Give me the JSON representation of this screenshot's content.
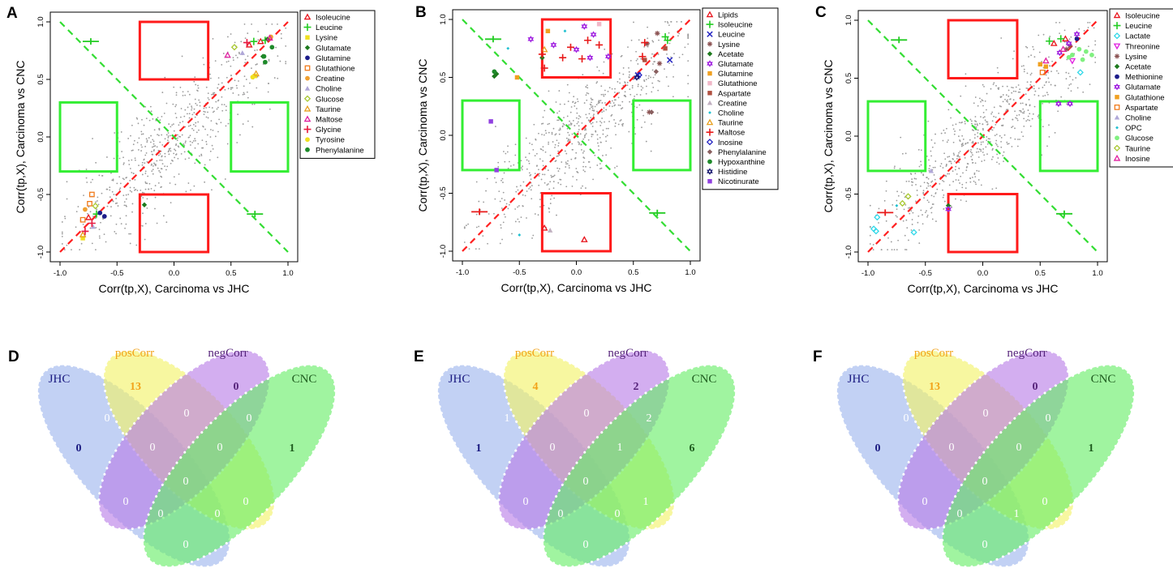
{
  "figure": {
    "colors": {
      "background_points": "#9a9a9a",
      "diag_positive": "#ff2020",
      "diag_negative": "#33dd33",
      "box_red": "#ff1a1a",
      "box_green": "#33ee33",
      "venn_blue": "#9db5ee",
      "venn_yellow": "#f2f266",
      "venn_purple": "#b87de6",
      "venn_green": "#66ee66",
      "jhc_label": "#1a1a80",
      "pos_label": "#f2a31a",
      "neg_label": "#55227a",
      "cnc_label": "#1f5c1f"
    }
  },
  "chart_data": [
    {
      "type": "scatter",
      "panel": "A",
      "xlabel": "Corr(tp,X), Carcinoma vs JHC",
      "ylabel": "Corr(tp,X), Carcinoma vs CNC",
      "xlim": [
        -1.0,
        1.0
      ],
      "ylim": [
        -1.0,
        1.0
      ],
      "xticks": [
        "-1.0",
        "-0.5",
        "0.0",
        "0.5",
        "1.0"
      ],
      "yticks": [
        "-1.0",
        "-0.5",
        "0.0",
        "0.5",
        "1.0"
      ],
      "background_seed": 11,
      "legend": [
        {
          "name": "Isoleucine",
          "color": "#e8141c",
          "marker": "triangle-open"
        },
        {
          "name": "Leucine",
          "color": "#22cc22",
          "marker": "plus"
        },
        {
          "name": "Lysine",
          "color": "#f0e020",
          "marker": "square"
        },
        {
          "name": "Glutamate",
          "color": "#1e7a1e",
          "marker": "diamond"
        },
        {
          "name": "Glutamine",
          "color": "#1c1c8a",
          "marker": "circle"
        },
        {
          "name": "Glutathione",
          "color": "#f07a1a",
          "marker": "square-open"
        },
        {
          "name": "Creatine",
          "color": "#f0a030",
          "marker": "circle"
        },
        {
          "name": "Choline",
          "color": "#b0a8d8",
          "marker": "triangle"
        },
        {
          "name": "Glucose",
          "color": "#a8c830",
          "marker": "diamond-open"
        },
        {
          "name": "Taurine",
          "color": "#e8a020",
          "marker": "triangle-open"
        },
        {
          "name": "Maltose",
          "color": "#e020a0",
          "marker": "triangle-open"
        },
        {
          "name": "Glycine",
          "color": "#e81a40",
          "marker": "plus"
        },
        {
          "name": "Tyrosine",
          "color": "#f0e020",
          "marker": "circle"
        },
        {
          "name": "Phenylalanine",
          "color": "#1e8a2a",
          "marker": "circle"
        }
      ],
      "points": [
        {
          "s": 0,
          "x": 0.76,
          "y": 0.83
        },
        {
          "s": 0,
          "x": 0.66,
          "y": 0.8
        },
        {
          "s": 0,
          "x": -0.75,
          "y": -0.7
        },
        {
          "s": 1,
          "x": 0.7,
          "y": 0.83
        },
        {
          "s": 1,
          "x": 0.8,
          "y": 0.84
        },
        {
          "s": 1,
          "x": -0.68,
          "y": -0.67
        },
        {
          "s": 2,
          "x": 0.71,
          "y": 0.53
        },
        {
          "s": 2,
          "x": -0.8,
          "y": -0.88
        },
        {
          "s": 3,
          "x": 0.82,
          "y": 0.85
        },
        {
          "s": 3,
          "x": 0.78,
          "y": 0.7
        },
        {
          "s": 3,
          "x": -0.26,
          "y": -0.59
        },
        {
          "s": 4,
          "x": -0.61,
          "y": -0.69
        },
        {
          "s": 4,
          "x": -0.65,
          "y": -0.66
        },
        {
          "s": 5,
          "x": -0.8,
          "y": -0.72
        },
        {
          "s": 5,
          "x": -0.74,
          "y": -0.58
        },
        {
          "s": 5,
          "x": -0.72,
          "y": -0.5
        },
        {
          "s": 6,
          "x": 0.85,
          "y": 0.87
        },
        {
          "s": 6,
          "x": -0.78,
          "y": -0.63
        },
        {
          "s": 7,
          "x": 0.6,
          "y": 0.73
        },
        {
          "s": 7,
          "x": -0.71,
          "y": -0.78
        },
        {
          "s": 8,
          "x": 0.53,
          "y": 0.78
        },
        {
          "s": 8,
          "x": -0.69,
          "y": -0.6
        },
        {
          "s": 9,
          "x": 0.72,
          "y": 0.55
        },
        {
          "s": 9,
          "x": -0.8,
          "y": -0.85
        },
        {
          "s": 10,
          "x": 0.47,
          "y": 0.71
        },
        {
          "s": 10,
          "x": 0.84,
          "y": 0.86
        },
        {
          "s": 11,
          "x": 0.64,
          "y": 0.82
        },
        {
          "s": 11,
          "x": -0.72,
          "y": -0.75
        },
        {
          "s": 11,
          "x": -0.78,
          "y": -0.82
        },
        {
          "s": 12,
          "x": 0.69,
          "y": 0.52
        },
        {
          "s": 13,
          "x": 0.86,
          "y": 0.78
        },
        {
          "s": 13,
          "x": 0.8,
          "y": 0.65
        },
        {
          "s": 13,
          "x": 0.79,
          "y": 0.7
        }
      ],
      "markers_off_diagonal": [
        {
          "type": "plus",
          "color": "#22cc22",
          "x": -0.73,
          "y": 0.83
        },
        {
          "type": "plus",
          "color": "#22cc22",
          "x": 0.71,
          "y": -0.67
        }
      ]
    },
    {
      "type": "scatter",
      "panel": "B",
      "xlabel": "Corr(tp,X), Carcinoma vs JHC",
      "ylabel": "Corr(tp,X), Carcinoma vs CNC",
      "xlim": [
        -1.0,
        1.0
      ],
      "ylim": [
        -1.0,
        1.0
      ],
      "xticks": [
        "-1.0",
        "-0.5",
        "0.0",
        "0.5",
        "1.0"
      ],
      "yticks": [
        "-1.0",
        "-0.5",
        "0.0",
        "0.5",
        "1.0"
      ],
      "background_seed": 23,
      "legend": [
        {
          "name": "Lipids",
          "color": "#e8141c",
          "marker": "triangle-open"
        },
        {
          "name": "Isoleucine",
          "color": "#22cc22",
          "marker": "plus"
        },
        {
          "name": "Leucine",
          "color": "#2020c0",
          "marker": "cross"
        },
        {
          "name": "Lysine",
          "color": "#8a5050",
          "marker": "asterisk"
        },
        {
          "name": "Acetate",
          "color": "#1e7a1e",
          "marker": "diamond"
        },
        {
          "name": "Glutamate",
          "color": "#a020e0",
          "marker": "star-of-david"
        },
        {
          "name": "Glutamine",
          "color": "#f0a020",
          "marker": "square"
        },
        {
          "name": "Glutathione",
          "color": "#f0b8c8",
          "marker": "square"
        },
        {
          "name": "Aspartate",
          "color": "#b05040",
          "marker": "square"
        },
        {
          "name": "Creatine",
          "color": "#c0b0c0",
          "marker": "triangle"
        },
        {
          "name": "Choline",
          "color": "#20c0d0",
          "marker": "diamond-small"
        },
        {
          "name": "Taurine",
          "color": "#e8a020",
          "marker": "triangle-open"
        },
        {
          "name": "Maltose",
          "color": "#e81a1a",
          "marker": "plus"
        },
        {
          "name": "Inosine",
          "color": "#2020c0",
          "marker": "diamond-open"
        },
        {
          "name": "Phenylalanine",
          "color": "#8a6060",
          "marker": "diamond"
        },
        {
          "name": "Hypoxanthine",
          "color": "#1e8a2a",
          "marker": "circle"
        },
        {
          "name": "Histidine",
          "color": "#1a1a70",
          "marker": "star-of-david"
        },
        {
          "name": "Nicotinurate",
          "color": "#9040e0",
          "marker": "square"
        }
      ],
      "points": [
        {
          "s": 0,
          "x": 0.07,
          "y": -0.9
        },
        {
          "s": 0,
          "x": -0.28,
          "y": -0.8
        },
        {
          "s": 1,
          "x": 0.78,
          "y": 0.85
        },
        {
          "s": 1,
          "x": 0.8,
          "y": 0.82
        },
        {
          "s": 2,
          "x": 0.82,
          "y": 0.65
        },
        {
          "s": 2,
          "x": 0.54,
          "y": 0.52
        },
        {
          "s": 3,
          "x": 0.71,
          "y": 0.88
        },
        {
          "s": 3,
          "x": 0.62,
          "y": 0.79
        },
        {
          "s": 3,
          "x": 0.73,
          "y": 0.62
        },
        {
          "s": 3,
          "x": 0.64,
          "y": 0.2
        },
        {
          "s": 4,
          "x": -0.7,
          "y": 0.53
        },
        {
          "s": 4,
          "x": -0.72,
          "y": 0.51
        },
        {
          "s": 4,
          "x": -0.3,
          "y": 0.67
        },
        {
          "s": 5,
          "x": -0.4,
          "y": 0.83
        },
        {
          "s": 5,
          "x": 0.07,
          "y": 0.94
        },
        {
          "s": 5,
          "x": 0.15,
          "y": 0.87
        },
        {
          "s": 5,
          "x": 0.12,
          "y": 0.67
        },
        {
          "s": 5,
          "x": -0.2,
          "y": 0.78
        },
        {
          "s": 5,
          "x": 0.0,
          "y": 0.74
        },
        {
          "s": 5,
          "x": 0.28,
          "y": 0.68
        },
        {
          "s": 6,
          "x": -0.25,
          "y": 0.9
        },
        {
          "s": 6,
          "x": -0.52,
          "y": 0.5
        },
        {
          "s": 7,
          "x": 0.2,
          "y": 0.96
        },
        {
          "s": 8,
          "x": 0.6,
          "y": 0.65
        },
        {
          "s": 8,
          "x": 0.78,
          "y": 0.75
        },
        {
          "s": 9,
          "x": -0.23,
          "y": -0.82
        },
        {
          "s": 10,
          "x": -0.6,
          "y": 0.75
        },
        {
          "s": 10,
          "x": -0.5,
          "y": -0.86
        },
        {
          "s": 10,
          "x": -0.1,
          "y": 0.9
        },
        {
          "s": 11,
          "x": -0.28,
          "y": 0.74
        },
        {
          "s": 12,
          "x": -0.28,
          "y": 0.58
        },
        {
          "s": 12,
          "x": -0.05,
          "y": 0.76
        },
        {
          "s": 12,
          "x": 0.05,
          "y": 0.66
        },
        {
          "s": 12,
          "x": 0.1,
          "y": 0.82
        },
        {
          "s": 12,
          "x": -0.12,
          "y": 0.67
        },
        {
          "s": 12,
          "x": 0.2,
          "y": 0.78
        },
        {
          "s": 12,
          "x": -0.3,
          "y": 0.7
        },
        {
          "s": 12,
          "x": 0.58,
          "y": 0.68
        },
        {
          "s": 12,
          "x": 0.6,
          "y": 0.8
        },
        {
          "s": 13,
          "x": 0.55,
          "y": 0.52
        },
        {
          "s": 14,
          "x": 0.7,
          "y": 0.55
        },
        {
          "s": 14,
          "x": 0.66,
          "y": 0.2
        },
        {
          "s": 15,
          "x": -0.72,
          "y": 0.55
        },
        {
          "s": 16,
          "x": 0.53,
          "y": 0.5
        },
        {
          "s": 17,
          "x": -0.75,
          "y": 0.12
        },
        {
          "s": 17,
          "x": -0.7,
          "y": -0.3
        }
      ],
      "markers_off_diagonal": [
        {
          "type": "plus",
          "color": "#22cc22",
          "x": -0.73,
          "y": 0.83
        },
        {
          "type": "plus",
          "color": "#22cc22",
          "x": 0.71,
          "y": -0.67
        },
        {
          "type": "plus",
          "color": "#e81a1a",
          "x": -0.85,
          "y": -0.66
        }
      ]
    },
    {
      "type": "scatter",
      "panel": "C",
      "xlabel": "Corr(tp,X), Carcinoma vs JHC",
      "ylabel": "Corr(tp,X), Carcinoma vs CNC",
      "xlim": [
        -1.0,
        1.0
      ],
      "ylim": [
        -1.0,
        1.0
      ],
      "xticks": [
        "-1.0",
        "-0.5",
        "0.0",
        "0.5",
        "1.0"
      ],
      "yticks": [
        "-1.0",
        "-0.5",
        "0.0",
        "0.5",
        "1.0"
      ],
      "background_seed": 37,
      "legend": [
        {
          "name": "Isoleucine",
          "color": "#e8141c",
          "marker": "triangle-open"
        },
        {
          "name": "Leucine",
          "color": "#22cc22",
          "marker": "plus"
        },
        {
          "name": "Lactate",
          "color": "#30d8e8",
          "marker": "diamond-open"
        },
        {
          "name": "Threonine",
          "color": "#e020e0",
          "marker": "triangle-down-open"
        },
        {
          "name": "Lysine",
          "color": "#8a5050",
          "marker": "asterisk"
        },
        {
          "name": "Acetate",
          "color": "#1e7a1e",
          "marker": "diamond"
        },
        {
          "name": "Methionine",
          "color": "#1c1c8a",
          "marker": "circle"
        },
        {
          "name": "Glutamate",
          "color": "#a020e0",
          "marker": "star-of-david"
        },
        {
          "name": "Glutathione",
          "color": "#f0a020",
          "marker": "square"
        },
        {
          "name": "Aspartate",
          "color": "#f07a1a",
          "marker": "square-open"
        },
        {
          "name": "Choline",
          "color": "#b0a8d8",
          "marker": "triangle"
        },
        {
          "name": "OPC",
          "color": "#20c0d0",
          "marker": "diamond-small"
        },
        {
          "name": "Glucose",
          "color": "#80f080",
          "marker": "circle"
        },
        {
          "name": "Taurine",
          "color": "#a8c830",
          "marker": "diamond-open"
        },
        {
          "name": "Inosine",
          "color": "#e020a0",
          "marker": "triangle-open"
        }
      ],
      "points": [
        {
          "s": 0,
          "x": 0.62,
          "y": 0.8
        },
        {
          "s": 0,
          "x": 0.72,
          "y": 0.84
        },
        {
          "s": 1,
          "x": 0.58,
          "y": 0.82
        },
        {
          "s": 1,
          "x": 0.68,
          "y": 0.84
        },
        {
          "s": 2,
          "x": -0.92,
          "y": -0.7
        },
        {
          "s": 2,
          "x": -0.95,
          "y": -0.8
        },
        {
          "s": 2,
          "x": -0.93,
          "y": -0.82
        },
        {
          "s": 2,
          "x": 0.85,
          "y": 0.55
        },
        {
          "s": 2,
          "x": -0.6,
          "y": -0.83
        },
        {
          "s": 3,
          "x": 0.78,
          "y": 0.65
        },
        {
          "s": 4,
          "x": 0.76,
          "y": 0.78
        },
        {
          "s": 4,
          "x": 0.73,
          "y": 0.75
        },
        {
          "s": 5,
          "x": -0.3,
          "y": -0.6
        },
        {
          "s": 6,
          "x": 0.82,
          "y": 0.84
        },
        {
          "s": 7,
          "x": 0.67,
          "y": 0.72
        },
        {
          "s": 7,
          "x": 0.75,
          "y": 0.8
        },
        {
          "s": 7,
          "x": 0.82,
          "y": 0.88
        },
        {
          "s": 7,
          "x": 0.66,
          "y": 0.28
        },
        {
          "s": 7,
          "x": 0.76,
          "y": 0.28
        },
        {
          "s": 7,
          "x": -0.3,
          "y": -0.63
        },
        {
          "s": 8,
          "x": 0.5,
          "y": 0.62
        },
        {
          "s": 8,
          "x": 0.55,
          "y": 0.6
        },
        {
          "s": 9,
          "x": 0.52,
          "y": 0.55
        },
        {
          "s": 10,
          "x": -0.45,
          "y": -0.3
        },
        {
          "s": 11,
          "x": -0.75,
          "y": -0.6
        },
        {
          "s": 12,
          "x": 0.95,
          "y": 0.7
        },
        {
          "s": 12,
          "x": 0.9,
          "y": 0.73
        },
        {
          "s": 12,
          "x": 0.87,
          "y": 0.66
        },
        {
          "s": 12,
          "x": 0.78,
          "y": 0.7
        },
        {
          "s": 12,
          "x": 0.84,
          "y": 0.75
        },
        {
          "s": 12,
          "x": 0.75,
          "y": 0.68
        },
        {
          "s": 13,
          "x": -0.65,
          "y": -0.52
        },
        {
          "s": 13,
          "x": -0.7,
          "y": -0.58
        },
        {
          "s": 14,
          "x": 0.55,
          "y": 0.65
        },
        {
          "s": 14,
          "x": 0.7,
          "y": 0.75
        }
      ],
      "markers_off_diagonal": [
        {
          "type": "plus",
          "color": "#22cc22",
          "x": -0.73,
          "y": 0.83
        },
        {
          "type": "plus",
          "color": "#22cc22",
          "x": 0.71,
          "y": -0.67
        },
        {
          "type": "plus",
          "color": "#e81a1a",
          "x": -0.85,
          "y": -0.66
        }
      ]
    },
    {
      "type": "venn",
      "panel": "D",
      "sets": [
        "JHC",
        "posCorr",
        "negCorr",
        "CNC"
      ],
      "counts": {
        "JHC": "0",
        "posCorr": "13",
        "negCorr": "0",
        "CNC": "1",
        "JHC_pos": "0",
        "pos_neg": "0",
        "neg_CNC": "0",
        "JHC_neg": "0",
        "pos_CNC": "0",
        "JHC_pos_neg": "0",
        "pos_neg_CNC": "0",
        "JHC_pos_CNC": "0",
        "JHC_neg_CNC": "0",
        "all": "0",
        "JHC_CNC": "0"
      }
    },
    {
      "type": "venn",
      "panel": "E",
      "sets": [
        "JHC",
        "posCorr",
        "negCorr",
        "CNC"
      ],
      "counts": {
        "JHC": "1",
        "posCorr": "4",
        "negCorr": "2",
        "CNC": "6",
        "JHC_pos": "1",
        "pos_neg": "0",
        "neg_CNC": "2",
        "JHC_neg": "0",
        "pos_CNC": "1",
        "JHC_pos_neg": "0",
        "pos_neg_CNC": "1",
        "JHC_pos_CNC": "0",
        "JHC_neg_CNC": "0",
        "all": "0",
        "JHC_CNC": "0"
      }
    },
    {
      "type": "venn",
      "panel": "F",
      "sets": [
        "JHC",
        "posCorr",
        "negCorr",
        "CNC"
      ],
      "counts": {
        "JHC": "0",
        "posCorr": "13",
        "negCorr": "0",
        "CNC": "1",
        "JHC_pos": "0",
        "pos_neg": "0",
        "neg_CNC": "0",
        "JHC_neg": "0",
        "pos_CNC": "0",
        "JHC_pos_neg": "0",
        "pos_neg_CNC": "0",
        "JHC_pos_CNC": "1",
        "JHC_neg_CNC": "0",
        "all": "0",
        "JHC_CNC": "0"
      }
    }
  ]
}
